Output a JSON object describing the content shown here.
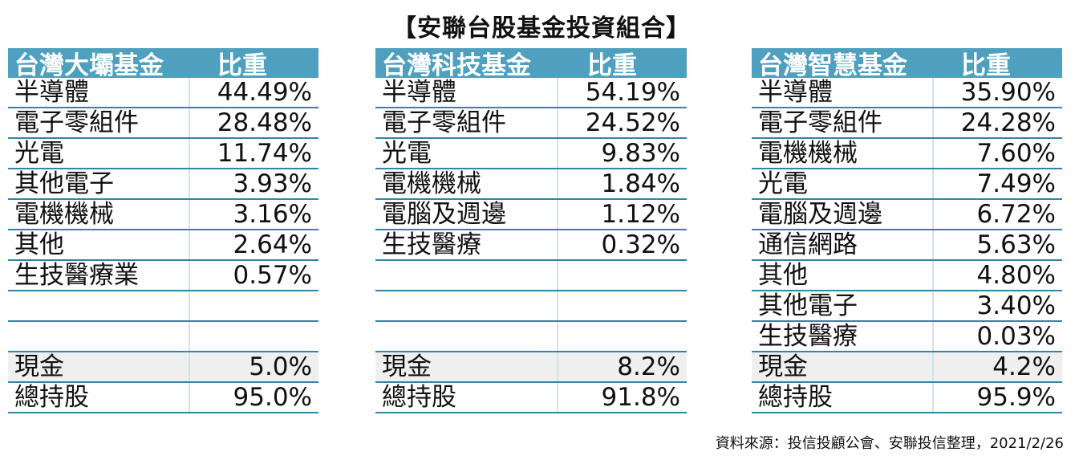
{
  "title": "【安聯台股基金投資組合】",
  "tables": [
    {
      "name": "台灣大壩基金",
      "weight_label": "比重",
      "rows": [
        {
          "label": "半導體",
          "value": "44.49%"
        },
        {
          "label": "電子零組件",
          "value": "28.48%"
        },
        {
          "label": "光電",
          "value": "11.74%"
        },
        {
          "label": "其他電子",
          "value": "3.93%"
        },
        {
          "label": "電機機械",
          "value": "3.16%"
        },
        {
          "label": "其他",
          "value": "2.64%"
        },
        {
          "label": "生技醫療業",
          "value": "0.57%"
        },
        {
          "label": "",
          "value": ""
        },
        {
          "label": "",
          "value": ""
        }
      ],
      "cash_label": "現金",
      "cash_value": "5.0%",
      "total_label": "總持股",
      "total_value": "95.0%"
    },
    {
      "name": "台灣科技基金",
      "weight_label": "比重",
      "rows": [
        {
          "label": "半導體",
          "value": "54.19%"
        },
        {
          "label": "電子零組件",
          "value": "24.52%"
        },
        {
          "label": "光電",
          "value": "9.83%"
        },
        {
          "label": "電機機械",
          "value": "1.84%"
        },
        {
          "label": "電腦及週邊",
          "value": "1.12%"
        },
        {
          "label": "生技醫療",
          "value": "0.32%"
        },
        {
          "label": "",
          "value": ""
        },
        {
          "label": "",
          "value": ""
        },
        {
          "label": "",
          "value": ""
        }
      ],
      "cash_label": "現金",
      "cash_value": "8.2%",
      "total_label": "總持股",
      "total_value": "91.8%"
    },
    {
      "name": "台灣智慧基金",
      "weight_label": "比重",
      "rows": [
        {
          "label": "半導體",
          "value": "35.90%"
        },
        {
          "label": "電子零組件",
          "value": "24.28%"
        },
        {
          "label": "電機機械",
          "value": "7.60%"
        },
        {
          "label": "光電",
          "value": "7.49%"
        },
        {
          "label": "電腦及週邊",
          "value": "6.72%"
        },
        {
          "label": "通信網路",
          "value": "5.63%"
        },
        {
          "label": "其他",
          "value": "4.80%"
        },
        {
          "label": "其他電子",
          "value": "3.40%"
        },
        {
          "label": "生技醫療",
          "value": "0.03%"
        }
      ],
      "cash_label": "現金",
      "cash_value": "4.2%",
      "total_label": "總持股",
      "total_value": "95.9%"
    }
  ],
  "source": "資料來源：投信投顧公會、安聯投信整理，2021/2/26",
  "colors": {
    "header": "#4f9fbe",
    "rule": "#2f86a6",
    "cash_row": "#efefef"
  }
}
